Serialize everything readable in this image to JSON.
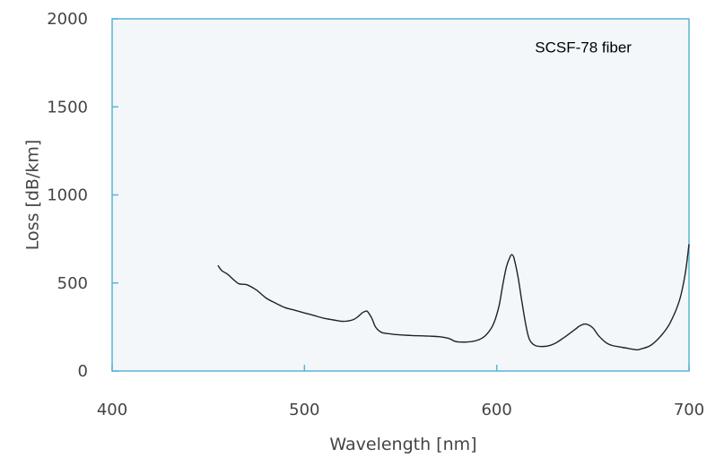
{
  "chart_data": {
    "type": "line",
    "title": "",
    "xlabel": "Wavelength [nm]",
    "ylabel": "Loss [dB/km]",
    "xlim": [
      400,
      700
    ],
    "ylim": [
      0,
      2000
    ],
    "x_ticks": [
      400,
      500,
      600,
      700
    ],
    "y_ticks": [
      0,
      500,
      1000,
      1500,
      2000
    ],
    "grid": false,
    "annotations": [
      {
        "text": "SCSF-78 fiber",
        "x": 645,
        "y": 1810
      }
    ],
    "colors": {
      "line": "#222222",
      "plot_background": "#f3f7f9",
      "frame": "#5bb3d6"
    },
    "series": [
      {
        "x": [
          455,
          457,
          460,
          463,
          466,
          470,
          475,
          480,
          485,
          490,
          495,
          500,
          505,
          510,
          515,
          520,
          525,
          528,
          530,
          532,
          533,
          535,
          537,
          540,
          545,
          550,
          555,
          560,
          565,
          570,
          575,
          578,
          580,
          585,
          590,
          594,
          598,
          601,
          603,
          605,
          607,
          608,
          609,
          611,
          613,
          615,
          617,
          620,
          625,
          630,
          635,
          640,
          643,
          645,
          647,
          650,
          653,
          657,
          660,
          665,
          670,
          673,
          675,
          680,
          685,
          690,
          695,
          698,
          700
        ],
        "y": [
          600,
          570,
          550,
          520,
          495,
          490,
          460,
          415,
          385,
          360,
          345,
          330,
          315,
          300,
          290,
          282,
          290,
          310,
          330,
          340,
          335,
          300,
          250,
          220,
          210,
          205,
          202,
          200,
          198,
          195,
          185,
          170,
          165,
          165,
          175,
          200,
          260,
          360,
          480,
          590,
          650,
          660,
          640,
          540,
          400,
          270,
          180,
          145,
          140,
          155,
          190,
          230,
          255,
          265,
          265,
          245,
          200,
          160,
          145,
          135,
          125,
          120,
          125,
          145,
          195,
          270,
          400,
          550,
          720
        ]
      }
    ]
  }
}
